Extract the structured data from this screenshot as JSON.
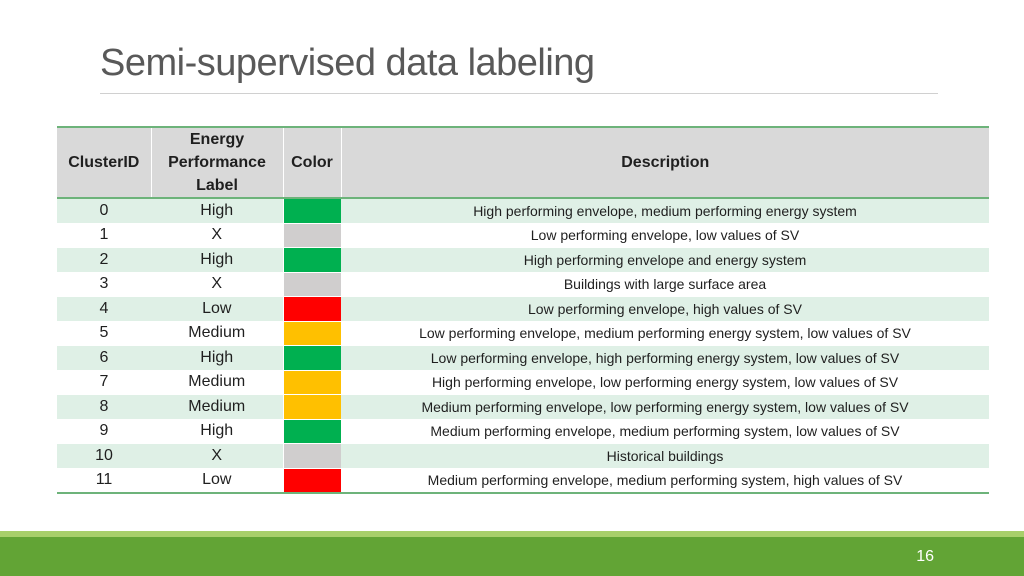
{
  "slide": {
    "title": "Semi-supervised data labeling",
    "page_number": "16"
  },
  "table": {
    "headers": {
      "cluster_id": "ClusterID",
      "label": [
        "Energy",
        "Performance",
        "Label"
      ],
      "color": "Color",
      "description": "Description"
    },
    "colors": {
      "green": "#00b050",
      "gray": "#d0cece",
      "red": "#ff0000",
      "amber": "#ffc000"
    },
    "rows": [
      {
        "id": "0",
        "label": "High",
        "color": "#00b050",
        "description": "High performing envelope, medium performing energy system"
      },
      {
        "id": "1",
        "label": "X",
        "color": "#d0cece",
        "description": "Low performing envelope, low values of SV"
      },
      {
        "id": "2",
        "label": "High",
        "color": "#00b050",
        "description": "High performing envelope and energy system"
      },
      {
        "id": "3",
        "label": "X",
        "color": "#d0cece",
        "description": "Buildings with large surface area"
      },
      {
        "id": "4",
        "label": "Low",
        "color": "#ff0000",
        "description": "Low performing envelope, high values of SV"
      },
      {
        "id": "5",
        "label": "Medium",
        "color": "#ffc000",
        "description": "Low performing envelope, medium performing energy system, low values of SV"
      },
      {
        "id": "6",
        "label": "High",
        "color": "#00b050",
        "description": "Low performing envelope, high performing energy system, low values of SV"
      },
      {
        "id": "7",
        "label": "Medium",
        "color": "#ffc000",
        "description": "High performing envelope, low performing energy system, low values of SV"
      },
      {
        "id": "8",
        "label": "Medium",
        "color": "#ffc000",
        "description": "Medium performing envelope, low performing energy  system, low values of SV"
      },
      {
        "id": "9",
        "label": "High",
        "color": "#00b050",
        "description": "Medium performing envelope, medium performing system, low values of SV"
      },
      {
        "id": "10",
        "label": "X",
        "color": "#d0cece",
        "description": "Historical buildings"
      },
      {
        "id": "11",
        "label": "Low",
        "color": "#ff0000",
        "description": "Medium performing envelope, medium performing system, high values of SV"
      }
    ]
  }
}
